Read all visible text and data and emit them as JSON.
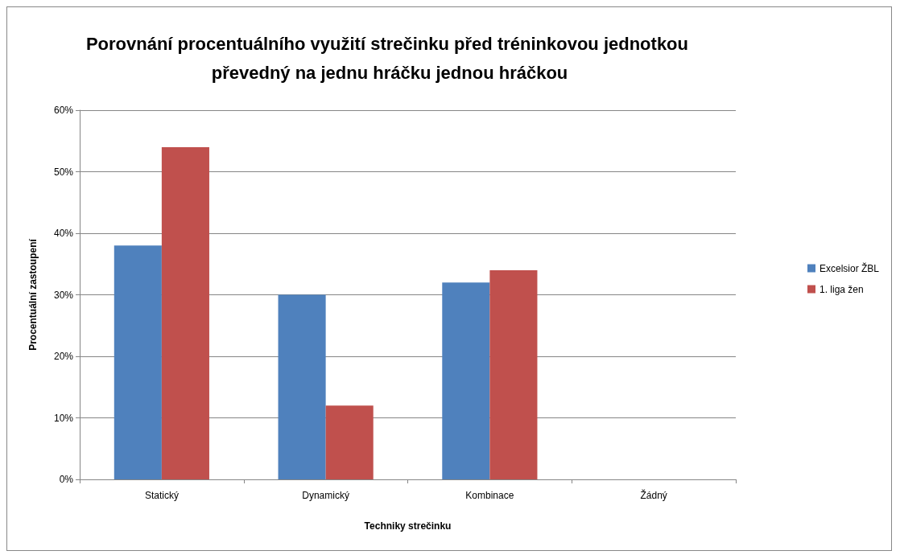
{
  "chart_data": {
    "type": "bar",
    "title": "Porovnání procentuálního využití strečinku před tréninkovou jednotkou převedný na jednu hráčku jednou hráčkou",
    "xlabel": "Techniky strečinku",
    "ylabel": "Procentuální zastoupení",
    "categories": [
      "Statický",
      "Dynamický",
      "Kombinace",
      "Žádný"
    ],
    "series": [
      {
        "name": "Excelsior ŽBL",
        "color": "#4f81bd",
        "values": [
          38,
          30,
          32,
          0
        ]
      },
      {
        "name": "1. liga žen",
        "color": "#c0504d",
        "values": [
          54,
          12,
          34,
          0
        ]
      }
    ],
    "ylim": [
      0,
      60
    ],
    "yticks": [
      {
        "value": 0,
        "label": "0%"
      },
      {
        "value": 10,
        "label": "10%"
      },
      {
        "value": 20,
        "label": "20%"
      },
      {
        "value": 30,
        "label": "30%"
      },
      {
        "value": 40,
        "label": "40%"
      },
      {
        "value": 50,
        "label": "50%"
      },
      {
        "value": 60,
        "label": "60%"
      }
    ],
    "grid": "y",
    "legend": "right"
  }
}
